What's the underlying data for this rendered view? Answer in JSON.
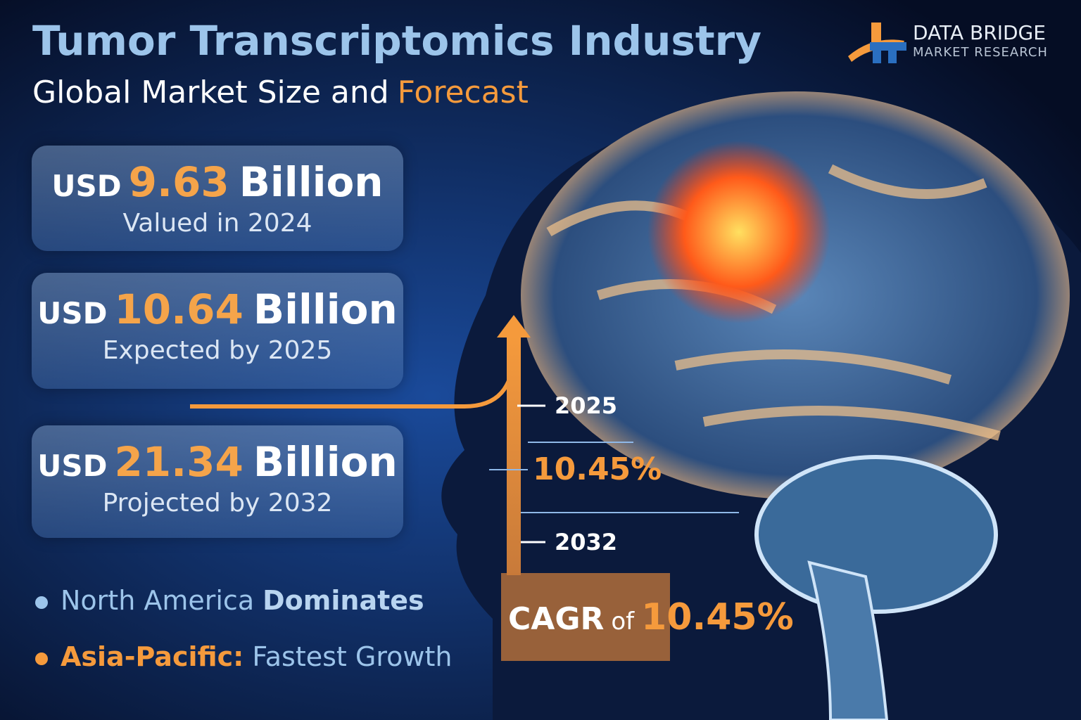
{
  "header": {
    "title": "Tumor Transcriptomics Industry",
    "subtitle": [
      "Global Market Size and",
      "Forecast"
    ]
  },
  "logo": {
    "name": "DATA BRIDGE",
    "tagline": "MARKET RESEARCH"
  },
  "cards": [
    {
      "prefix": "USD",
      "amount": "9.63",
      "unit": "Billion",
      "caption": "Valued in 2024"
    },
    {
      "prefix": "USD",
      "amount": "10.64",
      "unit": "Billion",
      "caption": "Expected by 2025"
    },
    {
      "prefix": "USD",
      "amount": "21.34",
      "unit": "Billion",
      "caption": "Projected by 2032"
    }
  ],
  "timeline": [
    "2025",
    "10.45%",
    "2032"
  ],
  "cagr": {
    "label": "CAGR",
    "joiner": "of",
    "value": "10.45%"
  },
  "bullets": [
    [
      "North America",
      "Dominates"
    ],
    [
      "Asia-Pacific:",
      "Fastest Growth"
    ]
  ]
}
